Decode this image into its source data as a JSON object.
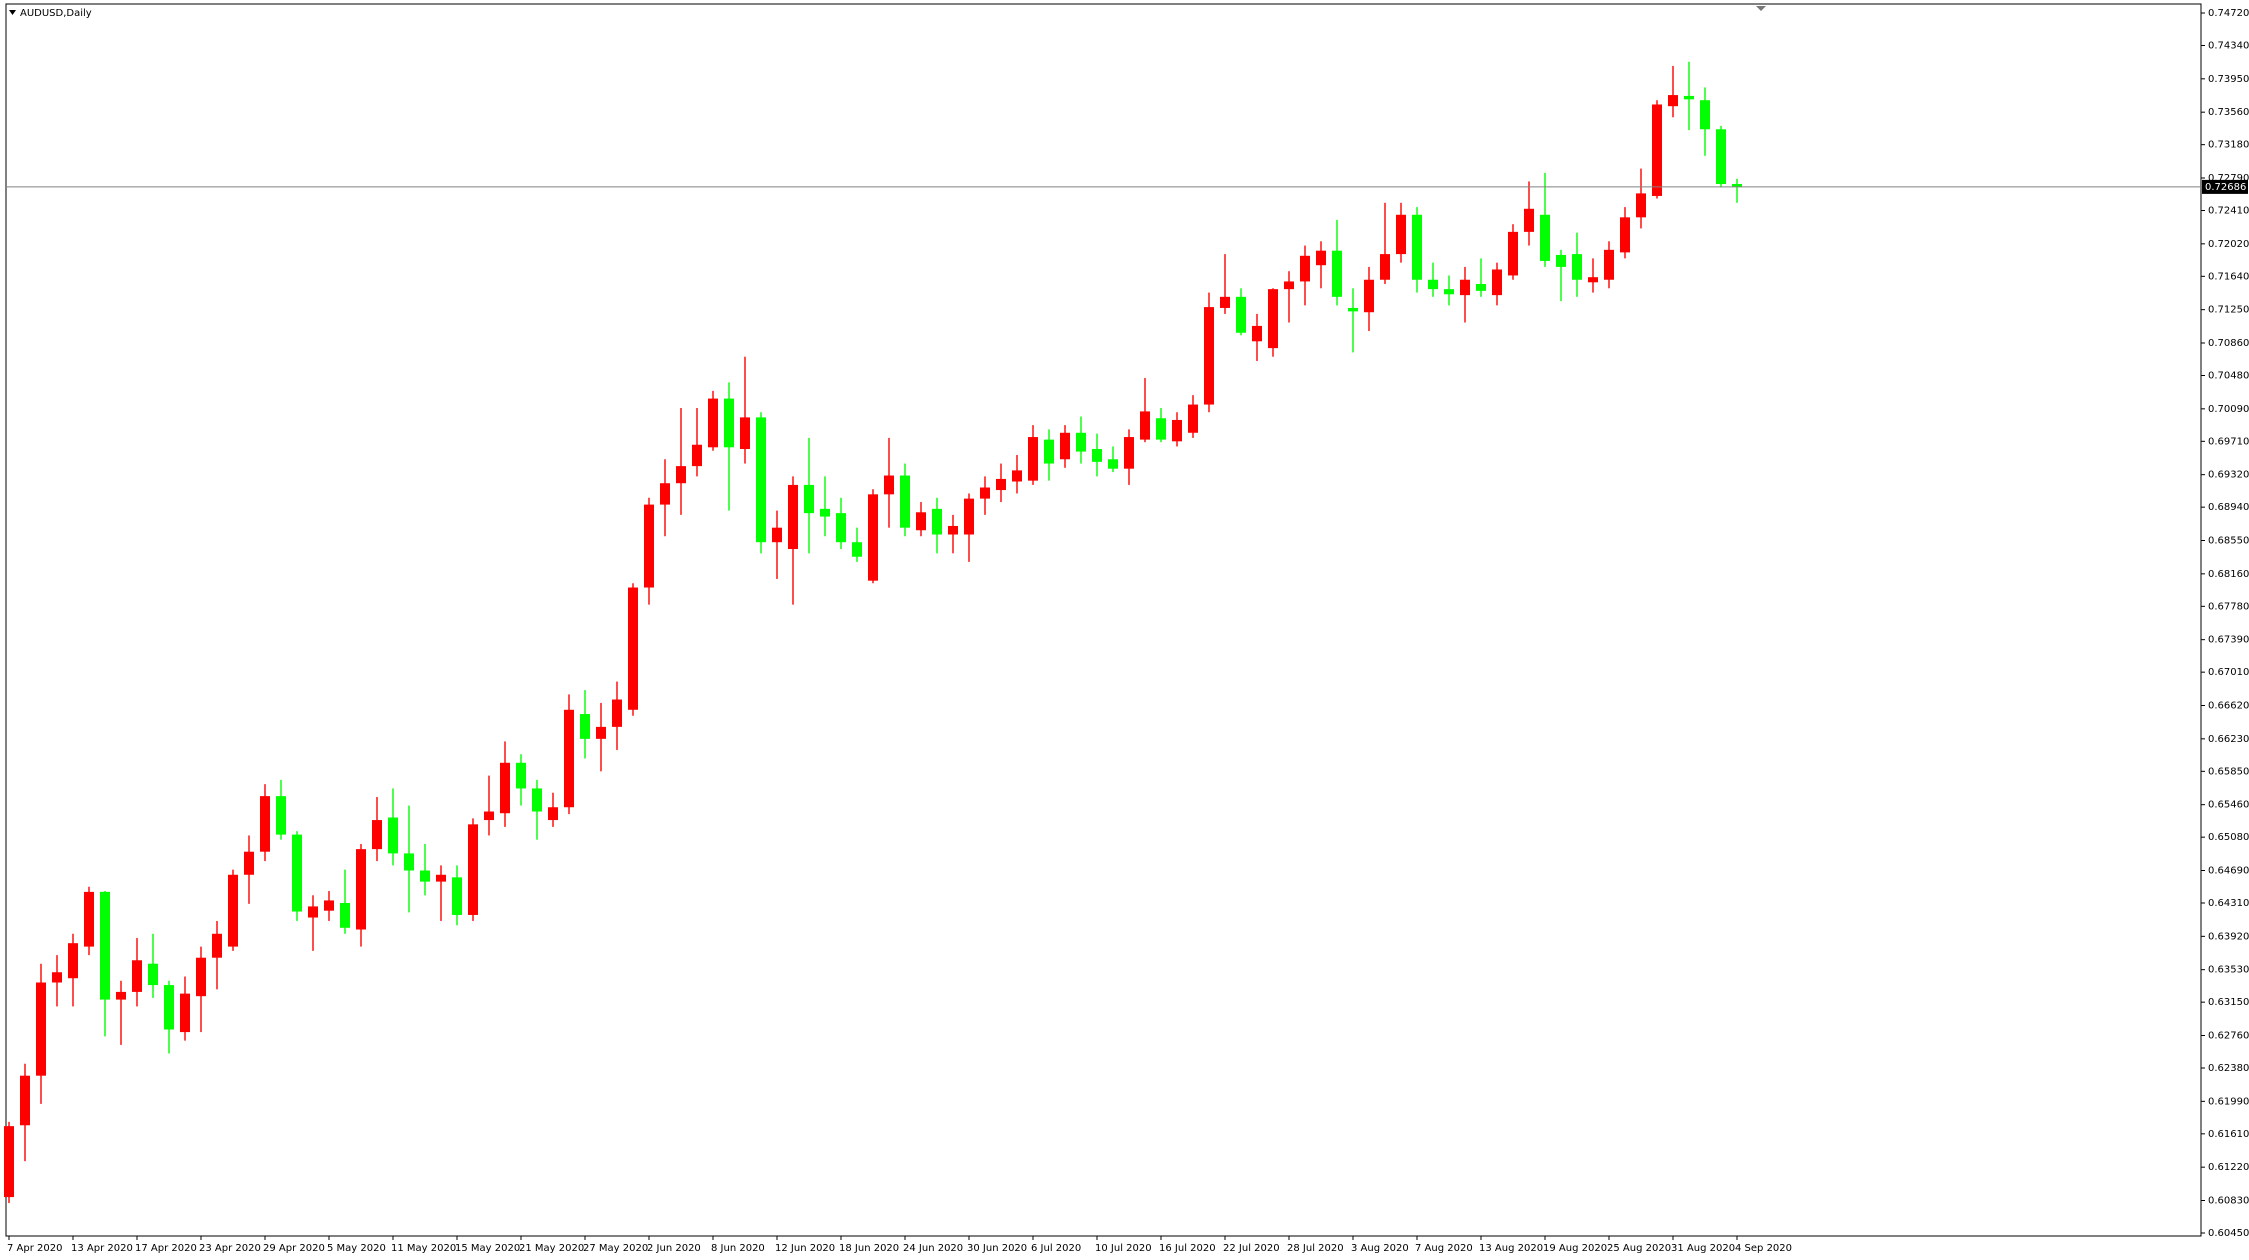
{
  "chart_data": {
    "type": "candlestick",
    "title": "AUDUSD,Daily",
    "categories": [
      "7 Apr 2020",
      null,
      null,
      null,
      "13 Apr 2020",
      null,
      null,
      null,
      "17 Apr 2020",
      null,
      null,
      null,
      "23 Apr 2020",
      null,
      null,
      null,
      "29 Apr 2020",
      null,
      null,
      null,
      "5 May 2020",
      null,
      null,
      null,
      "11 May 2020",
      null,
      null,
      null,
      "15 May 2020",
      null,
      null,
      null,
      "21 May 2020",
      null,
      null,
      null,
      "27 May 2020",
      null,
      null,
      null,
      "2 Jun 2020",
      null,
      null,
      null,
      "8 Jun 2020",
      null,
      null,
      null,
      "12 Jun 2020",
      null,
      null,
      null,
      "18 Jun 2020",
      null,
      null,
      null,
      "24 Jun 2020",
      null,
      null,
      null,
      "30 Jun 2020",
      null,
      null,
      null,
      "6 Jul 2020",
      null,
      null,
      null,
      "10 Jul 2020",
      null,
      null,
      null,
      "16 Jul 2020",
      null,
      null,
      null,
      "22 Jul 2020",
      null,
      null,
      null,
      "28 Jul 2020",
      null,
      null,
      null,
      "3 Aug 2020",
      null,
      null,
      null,
      "7 Aug 2020",
      null,
      null,
      null,
      "13 Aug 2020",
      null,
      null,
      null,
      "19 Aug 2020",
      null,
      null,
      null,
      "25 Aug 2020",
      null,
      null,
      null,
      "31 Aug 2020",
      null,
      null,
      null,
      "4 Sep 2020"
    ],
    "open": [
      0.6087,
      0.6171,
      0.6229,
      0.6338,
      0.6343,
      0.638,
      0.6444,
      0.6318,
      0.6327,
      0.636,
      0.6335,
      0.628,
      0.6322,
      0.6367,
      0.638,
      0.6464,
      0.6491,
      0.6556,
      0.6511,
      0.6414,
      0.6422,
      0.6431,
      0.64,
      0.6494,
      0.6531,
      0.6489,
      0.6469,
      0.6456,
      0.6461,
      0.6417,
      0.6528,
      0.6536,
      0.6595,
      0.6565,
      0.6528,
      0.6543,
      0.6652,
      0.6623,
      0.6637,
      0.6657,
      0.68,
      0.6897,
      0.6922,
      0.6942,
      0.6964,
      0.7021,
      0.6962,
      0.6999,
      0.6853,
      0.6845,
      0.692,
      0.6892,
      0.6887,
      0.6853,
      0.6808,
      0.6909,
      0.6931,
      0.6867,
      0.6892,
      0.6862,
      0.6862,
      0.6904,
      0.6914,
      0.6924,
      0.6925,
      0.6973,
      0.695,
      0.6981,
      0.6962,
      0.695,
      0.6939,
      0.6973,
      0.6998,
      0.6971,
      0.6981,
      0.7014,
      0.7127,
      0.714,
      0.7088,
      0.708,
      0.7149,
      0.7158,
      0.7177,
      0.7194,
      0.7127,
      0.7122,
      0.716,
      0.719,
      0.7236,
      0.716,
      0.7149,
      0.7142,
      0.7155,
      0.7142,
      0.7165,
      0.7216,
      0.7236,
      0.7189,
      0.719,
      0.7157,
      0.716,
      0.7192,
      0.7233,
      0.7258,
      0.7363,
      0.7375,
      0.737,
      0.7336,
      0.7272
    ],
    "high": [
      0.6175,
      0.6243,
      0.636,
      0.637,
      0.6395,
      0.645,
      0.6445,
      0.634,
      0.639,
      0.6395,
      0.634,
      0.6345,
      0.638,
      0.641,
      0.647,
      0.651,
      0.657,
      0.6575,
      0.6515,
      0.644,
      0.6445,
      0.647,
      0.65,
      0.6555,
      0.6565,
      0.6545,
      0.65,
      0.6475,
      0.6475,
      0.653,
      0.658,
      0.662,
      0.6605,
      0.6575,
      0.656,
      0.6675,
      0.668,
      0.6665,
      0.669,
      0.6805,
      0.6905,
      0.695,
      0.701,
      0.701,
      0.703,
      0.704,
      0.707,
      0.7005,
      0.689,
      0.693,
      0.6975,
      0.693,
      0.6905,
      0.687,
      0.6915,
      0.6975,
      0.6945,
      0.69,
      0.6905,
      0.6885,
      0.691,
      0.693,
      0.6945,
      0.6955,
      0.699,
      0.6985,
      0.699,
      0.7,
      0.698,
      0.6965,
      0.6985,
      0.7045,
      0.701,
      0.7005,
      0.7025,
      0.7145,
      0.719,
      0.715,
      0.712,
      0.715,
      0.717,
      0.72,
      0.7205,
      0.723,
      0.715,
      0.7175,
      0.725,
      0.725,
      0.7245,
      0.718,
      0.7165,
      0.7175,
      0.7185,
      0.718,
      0.7225,
      0.7275,
      0.7285,
      0.7195,
      0.7215,
      0.7185,
      0.7205,
      0.7245,
      0.729,
      0.737,
      0.741,
      0.7415,
      0.7385,
      0.734,
      0.7278
    ],
    "low": [
      0.608,
      0.6129,
      0.6196,
      0.631,
      0.631,
      0.637,
      0.6275,
      0.6265,
      0.631,
      0.632,
      0.6255,
      0.627,
      0.628,
      0.633,
      0.6375,
      0.643,
      0.648,
      0.6505,
      0.641,
      0.6375,
      0.641,
      0.6395,
      0.638,
      0.648,
      0.6475,
      0.642,
      0.644,
      0.641,
      0.6405,
      0.641,
      0.651,
      0.652,
      0.6545,
      0.6505,
      0.652,
      0.6535,
      0.66,
      0.6585,
      0.661,
      0.665,
      0.678,
      0.686,
      0.6885,
      0.693,
      0.696,
      0.689,
      0.6945,
      0.684,
      0.681,
      0.678,
      0.684,
      0.686,
      0.6845,
      0.683,
      0.6805,
      0.687,
      0.686,
      0.686,
      0.684,
      0.684,
      0.683,
      0.6885,
      0.69,
      0.691,
      0.692,
      0.6925,
      0.694,
      0.6945,
      0.693,
      0.6935,
      0.692,
      0.697,
      0.697,
      0.6965,
      0.6975,
      0.7005,
      0.712,
      0.7095,
      0.7065,
      0.707,
      0.711,
      0.713,
      0.715,
      0.713,
      0.7075,
      0.71,
      0.7155,
      0.718,
      0.7145,
      0.714,
      0.713,
      0.711,
      0.714,
      0.713,
      0.716,
      0.72,
      0.7175,
      0.7135,
      0.714,
      0.7145,
      0.715,
      0.7185,
      0.722,
      0.7255,
      0.735,
      0.7335,
      0.7305,
      0.7268,
      0.725
    ],
    "close": [
      0.617,
      0.6229,
      0.6338,
      0.635,
      0.6384,
      0.6444,
      0.6318,
      0.6327,
      0.6364,
      0.6335,
      0.6283,
      0.6325,
      0.6367,
      0.6395,
      0.6464,
      0.6491,
      0.6556,
      0.6511,
      0.6421,
      0.6427,
      0.6434,
      0.6402,
      0.6494,
      0.6528,
      0.6489,
      0.6469,
      0.6456,
      0.6464,
      0.6417,
      0.6523,
      0.6538,
      0.6595,
      0.6565,
      0.6538,
      0.6543,
      0.6657,
      0.6623,
      0.6637,
      0.6669,
      0.68,
      0.6897,
      0.6922,
      0.6942,
      0.6967,
      0.7021,
      0.6964,
      0.6999,
      0.6853,
      0.687,
      0.692,
      0.6887,
      0.6883,
      0.6853,
      0.6836,
      0.6909,
      0.6931,
      0.687,
      0.6888,
      0.6862,
      0.6872,
      0.6904,
      0.6917,
      0.6927,
      0.6937,
      0.6976,
      0.6945,
      0.6981,
      0.6959,
      0.6947,
      0.6939,
      0.6976,
      0.7006,
      0.6973,
      0.6996,
      0.7014,
      0.7128,
      0.714,
      0.7098,
      0.7106,
      0.7149,
      0.7158,
      0.7188,
      0.7194,
      0.714,
      0.7123,
      0.716,
      0.719,
      0.7236,
      0.716,
      0.7149,
      0.7143,
      0.716,
      0.7147,
      0.7172,
      0.7216,
      0.7243,
      0.7182,
      0.7175,
      0.716,
      0.7163,
      0.7195,
      0.7233,
      0.7261,
      0.7365,
      0.7376,
      0.7371,
      0.7336,
      0.7272,
      0.72686
    ],
    "up_color": "#ff0000",
    "down_color": "#00ff00",
    "current_price": 0.72686,
    "ylim": [
      0.6045,
      0.7472
    ],
    "yticks": [
      {
        "value": 0.7472,
        "label": "0.74720"
      },
      {
        "value": 0.7434,
        "label": "0.74340"
      },
      {
        "value": 0.7395,
        "label": "0.73950"
      },
      {
        "value": 0.7356,
        "label": "0.73560"
      },
      {
        "value": 0.7318,
        "label": "0.73180"
      },
      {
        "value": 0.7279,
        "label": "0.72790"
      },
      {
        "value": 0.7241,
        "label": "0.72410"
      },
      {
        "value": 0.7202,
        "label": "0.72020"
      },
      {
        "value": 0.7164,
        "label": "0.71640"
      },
      {
        "value": 0.7125,
        "label": "0.71250"
      },
      {
        "value": 0.7086,
        "label": "0.70860"
      },
      {
        "value": 0.7048,
        "label": "0.70480"
      },
      {
        "value": 0.7009,
        "label": "0.70090"
      },
      {
        "value": 0.6971,
        "label": "0.69710"
      },
      {
        "value": 0.6932,
        "label": "0.69320"
      },
      {
        "value": 0.6894,
        "label": "0.68940"
      },
      {
        "value": 0.6855,
        "label": "0.68550"
      },
      {
        "value": 0.6816,
        "label": "0.68160"
      },
      {
        "value": 0.6778,
        "label": "0.67780"
      },
      {
        "value": 0.6739,
        "label": "0.67390"
      },
      {
        "value": 0.6701,
        "label": "0.67010"
      },
      {
        "value": 0.6662,
        "label": "0.66620"
      },
      {
        "value": 0.6623,
        "label": "0.66230"
      },
      {
        "value": 0.6585,
        "label": "0.65850"
      },
      {
        "value": 0.6546,
        "label": "0.65460"
      },
      {
        "value": 0.6508,
        "label": "0.65080"
      },
      {
        "value": 0.6469,
        "label": "0.64690"
      },
      {
        "value": 0.6431,
        "label": "0.64310"
      },
      {
        "value": 0.6392,
        "label": "0.63920"
      },
      {
        "value": 0.6353,
        "label": "0.63530"
      },
      {
        "value": 0.6315,
        "label": "0.63150"
      },
      {
        "value": 0.6276,
        "label": "0.62760"
      },
      {
        "value": 0.6238,
        "label": "0.62380"
      },
      {
        "value": 0.6199,
        "label": "0.61990"
      },
      {
        "value": 0.6161,
        "label": "0.61610"
      },
      {
        "value": 0.6122,
        "label": "0.61220"
      },
      {
        "value": 0.6083,
        "label": "0.60830"
      },
      {
        "value": 0.6045,
        "label": "0.60450"
      }
    ],
    "grid": false
  }
}
